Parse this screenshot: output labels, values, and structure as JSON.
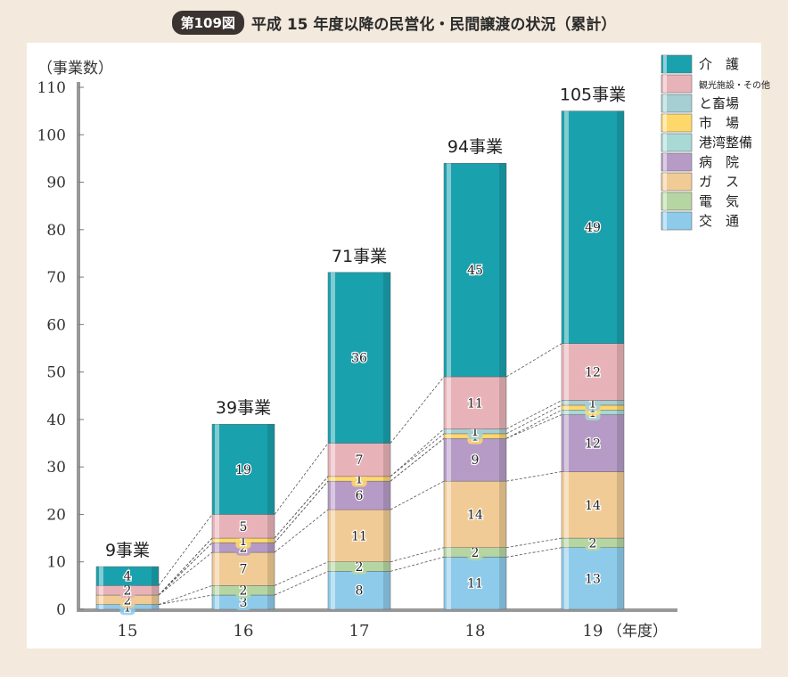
{
  "header": {
    "badge": "第109図",
    "title": "平成 15 年度以降の民営化・民間譲渡の状況（累計）"
  },
  "chart_data": {
    "type": "bar",
    "stacked": true,
    "ylabel": "（事業数）",
    "xlabel": "（年度）",
    "ylim": [
      0,
      110
    ],
    "yticks": [
      0,
      10,
      20,
      30,
      40,
      50,
      60,
      70,
      80,
      90,
      100,
      110
    ],
    "categories": [
      "15",
      "16",
      "17",
      "18",
      "19"
    ],
    "totals": [
      9,
      39,
      71,
      94,
      105
    ],
    "total_labels": [
      "9事業",
      "39事業",
      "71事業",
      "94事業",
      "105事業"
    ],
    "series": [
      {
        "name": "交　通",
        "color": "#8ecbea",
        "values": [
          1,
          3,
          8,
          11,
          13
        ],
        "labels": [
          "1",
          "3",
          "8",
          "11",
          "13"
        ]
      },
      {
        "name": "電　気",
        "color": "#b5d6a3",
        "values": [
          0,
          2,
          2,
          2,
          2
        ],
        "labels": [
          "",
          "2",
          "2",
          "2",
          "2"
        ]
      },
      {
        "name": "ガ　ス",
        "color": "#f1cb95",
        "values": [
          2,
          7,
          11,
          14,
          14
        ],
        "labels": [
          "2",
          "7",
          "11",
          "14",
          "14"
        ]
      },
      {
        "name": "病　院",
        "color": "#b69bc7",
        "values": [
          0,
          2,
          6,
          9,
          12
        ],
        "labels": [
          "",
          "2",
          "6",
          "9",
          "12"
        ]
      },
      {
        "name": "港湾整備",
        "color": "#a9d9d4",
        "values": [
          0,
          0,
          0,
          0,
          1
        ],
        "labels": [
          "",
          "",
          "",
          "",
          "1"
        ]
      },
      {
        "name": "市　場",
        "color": "#ffd86b",
        "values": [
          0,
          1,
          1,
          1,
          1
        ],
        "labels": [
          "",
          "1",
          "1",
          "1",
          "1"
        ]
      },
      {
        "name": "と畜場",
        "color": "#a6cfd3",
        "values": [
          0,
          0,
          0,
          1,
          1
        ],
        "labels": [
          "",
          "",
          "",
          "1",
          "1"
        ]
      },
      {
        "name": "観光施設・その他",
        "color": "#e8b3b8",
        "values": [
          2,
          5,
          7,
          11,
          12
        ],
        "labels": [
          "2",
          "5",
          "7",
          "11",
          "12"
        ]
      },
      {
        "name": "介　護",
        "color": "#1aa1ae",
        "values": [
          4,
          19,
          36,
          45,
          49
        ],
        "labels": [
          "4",
          "19",
          "36",
          "45",
          "49"
        ]
      }
    ]
  }
}
